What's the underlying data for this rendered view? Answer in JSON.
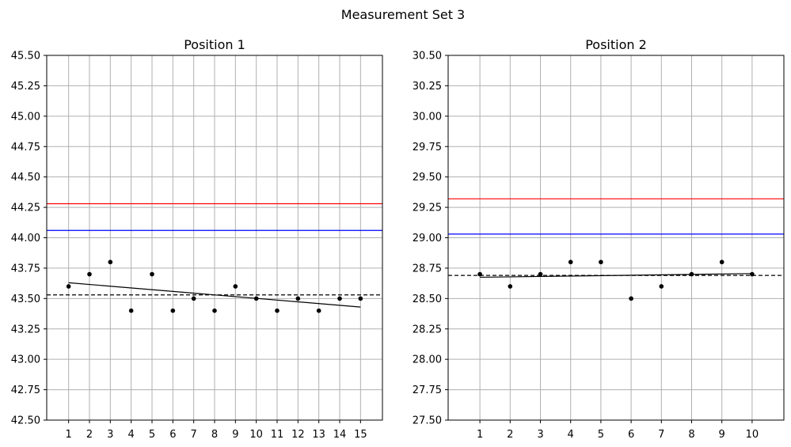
{
  "figure_title": "Measurement Set 3",
  "colors": {
    "upper_limit": "#ff0000",
    "target": "#0000ff",
    "points": "#000000",
    "trend": "#000000",
    "mean": "#000000",
    "grid": "#b0b0b0"
  },
  "chart_data": [
    {
      "type": "scatter",
      "title": "Position 1",
      "xlabel": "",
      "ylabel": "",
      "grid": true,
      "x": [
        1,
        2,
        3,
        4,
        5,
        6,
        7,
        8,
        9,
        10,
        11,
        12,
        13,
        14,
        15
      ],
      "y": [
        43.6,
        43.7,
        43.8,
        43.4,
        43.7,
        43.4,
        43.5,
        43.4,
        43.6,
        43.5,
        43.4,
        43.5,
        43.4,
        43.5,
        43.5
      ],
      "xlim": [
        -0.05,
        16.05
      ],
      "ylim": [
        42.5,
        45.5
      ],
      "xticks": [
        1,
        2,
        3,
        4,
        5,
        6,
        7,
        8,
        9,
        10,
        11,
        12,
        13,
        14,
        15
      ],
      "yticks": [
        "42.50",
        "42.75",
        "43.00",
        "43.25",
        "43.50",
        "43.75",
        "44.00",
        "44.25",
        "44.50",
        "44.75",
        "45.00",
        "45.25",
        "45.50"
      ],
      "hlines": [
        {
          "y": 44.28,
          "color": "#ff0000",
          "style": "solid"
        },
        {
          "y": 44.06,
          "color": "#0000ff",
          "style": "solid"
        },
        {
          "y": 43.53,
          "color": "#000000",
          "style": "dashed"
        }
      ],
      "trend": {
        "x": [
          1,
          15
        ],
        "y": [
          43.63,
          43.43
        ]
      }
    },
    {
      "type": "scatter",
      "title": "Position 2",
      "xlabel": "",
      "ylabel": "",
      "grid": true,
      "x": [
        1,
        2,
        3,
        4,
        5,
        6,
        7,
        8,
        9,
        10
      ],
      "y": [
        28.7,
        28.6,
        28.7,
        28.8,
        28.8,
        28.5,
        28.6,
        28.7,
        28.8,
        28.7
      ],
      "xlim": [
        -0.05,
        11.05
      ],
      "ylim": [
        27.5,
        30.5
      ],
      "xticks": [
        1,
        2,
        3,
        4,
        5,
        6,
        7,
        8,
        9,
        10
      ],
      "yticks": [
        "27.50",
        "27.75",
        "28.00",
        "28.25",
        "28.50",
        "28.75",
        "29.00",
        "29.25",
        "29.50",
        "29.75",
        "30.00",
        "30.25",
        "30.50"
      ],
      "hlines": [
        {
          "y": 29.32,
          "color": "#ff0000",
          "style": "solid"
        },
        {
          "y": 29.03,
          "color": "#0000ff",
          "style": "solid"
        },
        {
          "y": 28.69,
          "color": "#000000",
          "style": "dashed"
        }
      ],
      "trend": {
        "x": [
          1,
          10
        ],
        "y": [
          28.675,
          28.705
        ]
      }
    }
  ]
}
